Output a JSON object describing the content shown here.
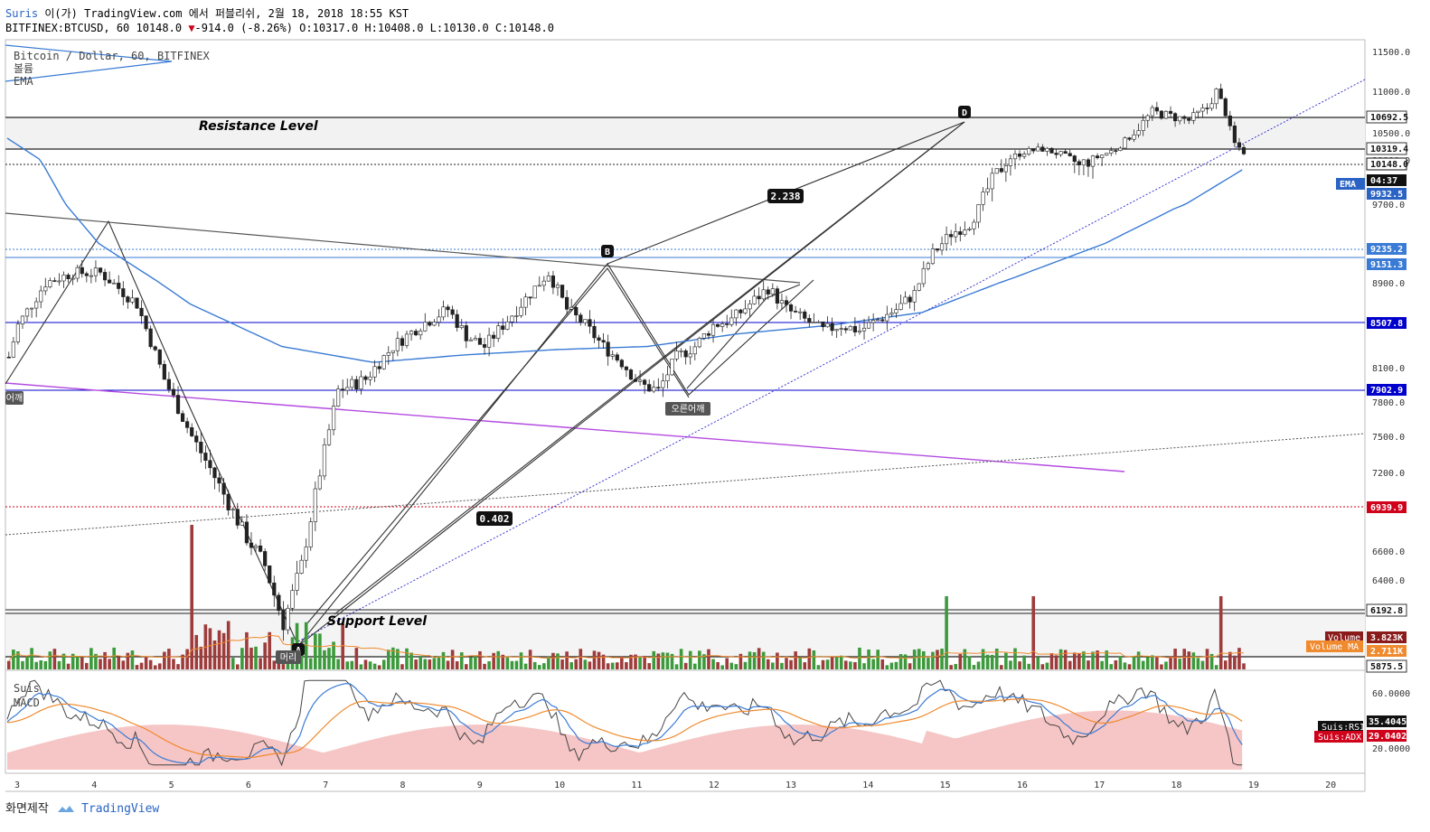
{
  "header": {
    "publisher": "Suris",
    "published_line": " 이(가) TradingView.com 에서 퍼블리쉬, 2월 18, 2018 18:55 KST",
    "symbol_line": "BITFINEX:BTCUSD, 60 10148.0",
    "change": "-914.0 (-8.26%)",
    "ohlc": "O:10317.0 H:10408.0 L:10130.0 C:10148.0"
  },
  "legend": {
    "series": "Bitcoin / Dollar, 60, BITFINEX",
    "volume": "볼륨",
    "ema": "EMA"
  },
  "sub_legend": {
    "title": "Suis",
    "macd": "MACD"
  },
  "annotations": {
    "resistance": "Resistance Level",
    "support": "Support Level",
    "fib1": "2.238",
    "fib2": "0.402",
    "pt_b": "B",
    "pt_d": "D",
    "pt_a": "A",
    "shoulder_right": "오른어깨",
    "shoulder_left": "어깨",
    "head": "머리"
  },
  "price_labels": {
    "p1": "10692.5",
    "p2": "10319.4",
    "p3": "10148.0",
    "countdown": "04:37",
    "ema_tag": "EMA",
    "ema_val": "9932.5",
    "p4": "9235.2",
    "p5": "9151.3",
    "p6": "8507.8",
    "p7": "7902.9",
    "p8": "6939.9",
    "p9": "6192.8",
    "p10": "5875.5",
    "vol_tag": "Volume",
    "vol_val": "3.823K",
    "volma_tag": "Volume MA",
    "volma_val": "2.711K",
    "rsi_tag": "Suis:RSI",
    "rsi_val": "35.4045",
    "adx_tag": "Suis:ADX",
    "adx_val": "29.0402"
  },
  "footer": {
    "left": "화면제작",
    "brand": "TradingView"
  },
  "colors": {
    "bull": "#3c9a3c",
    "bear": "#9e3b3b",
    "ema": "#3a7bd5",
    "magenta": "#b44be0",
    "fib": "#333333",
    "red_line": "#d0021b",
    "blue_line": "#0000cc",
    "adx_fill": "#f6c5c5"
  },
  "chart_data": {
    "type": "candlestick",
    "symbol": "BITFINEX:BTCUSD",
    "interval": "60",
    "y_ticks": [
      11500,
      11000,
      10500,
      10000,
      9700,
      8900,
      8100,
      7800,
      7500,
      7200,
      6600,
      6400
    ],
    "x_ticks": [
      "3",
      "4",
      "5",
      "6",
      "7",
      "8",
      "9",
      "10",
      "11",
      "12",
      "13",
      "14",
      "15",
      "16",
      "17",
      "18",
      "19",
      "20"
    ],
    "sub_ticks": [
      "60.0000",
      "20.0000"
    ],
    "ylim": [
      5800,
      11700
    ],
    "horizontal_levels": [
      10692.5,
      10319.4,
      10148.0,
      9235.2,
      9151.3,
      8507.8,
      7902.9,
      6939.9,
      6192.8,
      5875.5
    ],
    "path": [
      [
        0,
        8200
      ],
      [
        2,
        8500
      ],
      [
        8,
        8900
      ],
      [
        14,
        9000
      ],
      [
        20,
        9000
      ],
      [
        28,
        8700
      ],
      [
        34,
        8000
      ],
      [
        40,
        7500
      ],
      [
        46,
        7100
      ],
      [
        52,
        6700
      ],
      [
        56,
        6500
      ],
      [
        60,
        6100
      ],
      [
        64,
        6500
      ],
      [
        68,
        7200
      ],
      [
        72,
        7900
      ],
      [
        78,
        8000
      ],
      [
        84,
        8300
      ],
      [
        90,
        8500
      ],
      [
        96,
        8650
      ],
      [
        100,
        8400
      ],
      [
        104,
        8300
      ],
      [
        108,
        8500
      ],
      [
        112,
        8700
      ],
      [
        116,
        8900
      ],
      [
        118,
        9000
      ],
      [
        122,
        8650
      ],
      [
        126,
        8500
      ],
      [
        130,
        8300
      ],
      [
        134,
        8150
      ],
      [
        138,
        7950
      ],
      [
        142,
        7900
      ],
      [
        146,
        8200
      ],
      [
        150,
        8300
      ],
      [
        154,
        8500
      ],
      [
        158,
        8550
      ],
      [
        162,
        8700
      ],
      [
        166,
        8850
      ],
      [
        170,
        8650
      ],
      [
        174,
        8550
      ],
      [
        178,
        8450
      ],
      [
        182,
        8500
      ],
      [
        186,
        8450
      ],
      [
        190,
        8550
      ],
      [
        194,
        8650
      ],
      [
        198,
        8800
      ],
      [
        202,
        9200
      ],
      [
        206,
        9400
      ],
      [
        210,
        9500
      ],
      [
        214,
        9800
      ],
      [
        218,
        10000
      ],
      [
        222,
        10150
      ],
      [
        226,
        10200
      ],
      [
        230,
        10100
      ],
      [
        234,
        9950
      ],
      [
        238,
        10050
      ],
      [
        242,
        10200
      ],
      [
        246,
        10500
      ],
      [
        250,
        10750
      ],
      [
        254,
        10700
      ],
      [
        258,
        10650
      ],
      [
        262,
        10800
      ],
      [
        264,
        11000
      ],
      [
        266,
        10750
      ],
      [
        268,
        10300
      ],
      [
        270,
        10148
      ]
    ],
    "ema": [
      [
        0,
        10400
      ],
      [
        20,
        9300
      ],
      [
        40,
        8700
      ],
      [
        60,
        8300
      ],
      [
        80,
        8150
      ],
      [
        100,
        8220
      ],
      [
        120,
        8270
      ],
      [
        140,
        8300
      ],
      [
        160,
        8420
      ],
      [
        180,
        8500
      ],
      [
        200,
        8620
      ],
      [
        220,
        8950
      ],
      [
        240,
        9300
      ],
      [
        255,
        9650
      ],
      [
        270,
        9932.5
      ]
    ]
  }
}
